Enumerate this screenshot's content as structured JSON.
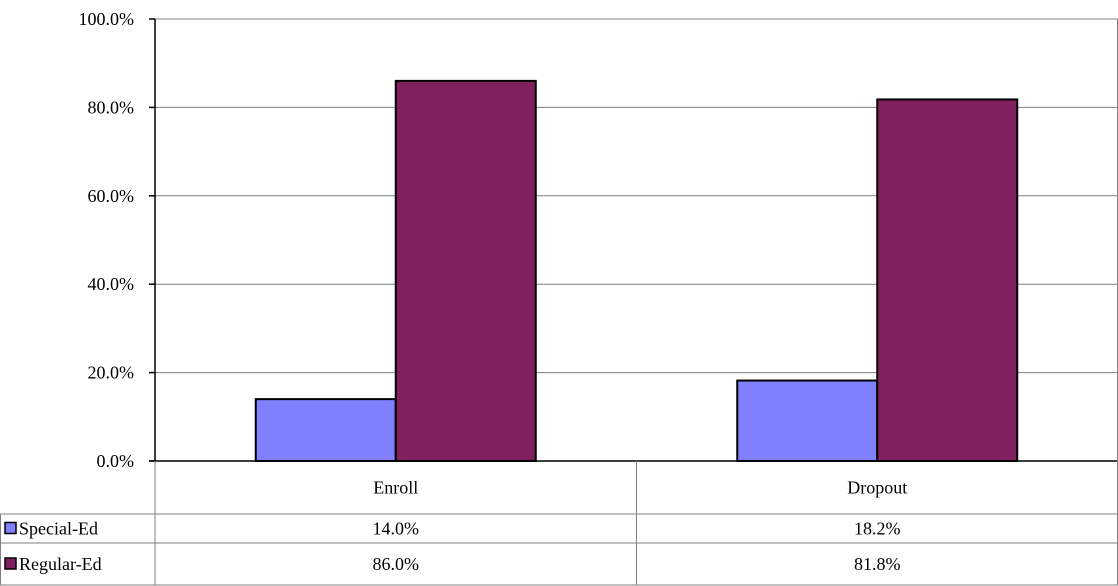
{
  "chart_data": {
    "type": "bar",
    "categories": [
      "Enroll",
      "Dropout"
    ],
    "series": [
      {
        "name": "Special-Ed",
        "values": [
          14.0,
          18.2
        ],
        "labels": [
          "14.0%",
          "18.2%"
        ],
        "color": "#8080ff"
      },
      {
        "name": "Regular-Ed",
        "values": [
          86.0,
          81.8
        ],
        "labels": [
          "86.0%",
          "81.8%"
        ],
        "color": "#80205f"
      }
    ],
    "ylim": [
      0,
      100
    ],
    "yticks": [
      0,
      20,
      40,
      60,
      80,
      100
    ],
    "ytick_labels": [
      "0.0%",
      "20.0%",
      "40.0%",
      "60.0%",
      "80.0%",
      "100.0%"
    ],
    "grid": true,
    "legend": "data-table",
    "title": "",
    "xlabel": "",
    "ylabel": ""
  }
}
